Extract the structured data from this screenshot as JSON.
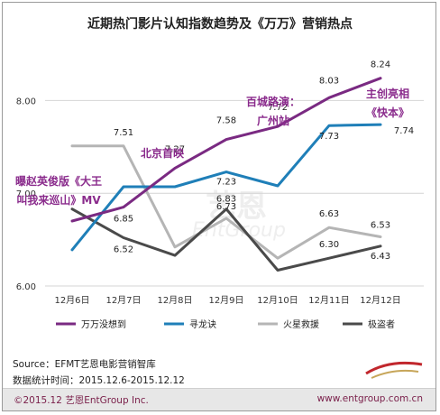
{
  "title": "近期热门影片认知指数趋势及《万万》营销热点",
  "footer": {
    "source": "Source：EFMT艺恩电影营销智库",
    "period": "数据统计时间：2015.12.6-2015.12.12",
    "copyright": "©2015.12 艺恩EntGroup Inc.",
    "website": "www.entgroup.com.cn"
  },
  "watermark": {
    "text1": "艺恩",
    "text2": "EntGroup"
  },
  "colors": {
    "wanwan": "#7a2a82",
    "xunlong": "#1f7fb8",
    "huoxing": "#b5b5b5",
    "jidao": "#4a4a4a",
    "annotation": "#8a2b8c",
    "grid": "#d4d4d4"
  },
  "chart_data": {
    "type": "line",
    "categories": [
      "12月6日",
      "12月7日",
      "12月8日",
      "12月9日",
      "12月10日",
      "12月11日",
      "12月12日"
    ],
    "ylim": [
      6.0,
      8.5
    ],
    "yticks": [
      "6.00",
      "7.00",
      "8.00"
    ],
    "grid": true,
    "legend_position": "bottom",
    "series": [
      {
        "name": "万万没想到",
        "color": "#7a2a82",
        "values": [
          6.7,
          6.85,
          7.27,
          7.58,
          7.72,
          8.03,
          8.24
        ]
      },
      {
        "name": "寻龙诀",
        "color": "#1f7fb8",
        "values": [
          6.39,
          7.07,
          7.07,
          7.23,
          7.08,
          7.73,
          7.74
        ]
      },
      {
        "name": "火星救援",
        "color": "#b5b5b5",
        "values": [
          7.51,
          7.51,
          6.42,
          6.73,
          6.3,
          6.63,
          6.53
        ]
      },
      {
        "name": "极盗者",
        "color": "#4a4a4a",
        "values": [
          6.83,
          6.52,
          6.33,
          6.83,
          6.17,
          6.3,
          6.43
        ]
      }
    ],
    "data_labels": [
      {
        "text": "6.85",
        "series": 0,
        "index": 1
      },
      {
        "text": "7.27",
        "series": 0,
        "index": 2
      },
      {
        "text": "7.58",
        "series": 0,
        "index": 3
      },
      {
        "text": "7.72",
        "series": 0,
        "index": 4
      },
      {
        "text": "8.03",
        "series": 0,
        "index": 5
      },
      {
        "text": "8.24",
        "series": 0,
        "index": 6
      },
      {
        "text": "7.23",
        "series": 1,
        "index": 3
      },
      {
        "text": "7.73",
        "series": 1,
        "index": 5
      },
      {
        "text": "7.74",
        "series": 1,
        "index": 6
      },
      {
        "text": "7.51",
        "series": 2,
        "index": 1
      },
      {
        "text": "6.73",
        "series": 2,
        "index": 3
      },
      {
        "text": "6.63",
        "series": 2,
        "index": 5
      },
      {
        "text": "6.53",
        "series": 2,
        "index": 6
      },
      {
        "text": "6.52",
        "series": 3,
        "index": 1
      },
      {
        "text": "6.83",
        "series": 3,
        "index": 3
      },
      {
        "text": "6.30",
        "series": 3,
        "index": 5
      },
      {
        "text": "6.43",
        "series": 3,
        "index": 6
      }
    ],
    "annotations": [
      {
        "lines": [
          "曝赵英俊版《大王",
          "叫我来巡山》MV"
        ]
      },
      {
        "lines": [
          "北京首映"
        ]
      },
      {
        "lines": [
          "百城路演：",
          "广州站"
        ]
      },
      {
        "lines": [
          "主创亮相",
          "《快本》"
        ]
      }
    ]
  }
}
